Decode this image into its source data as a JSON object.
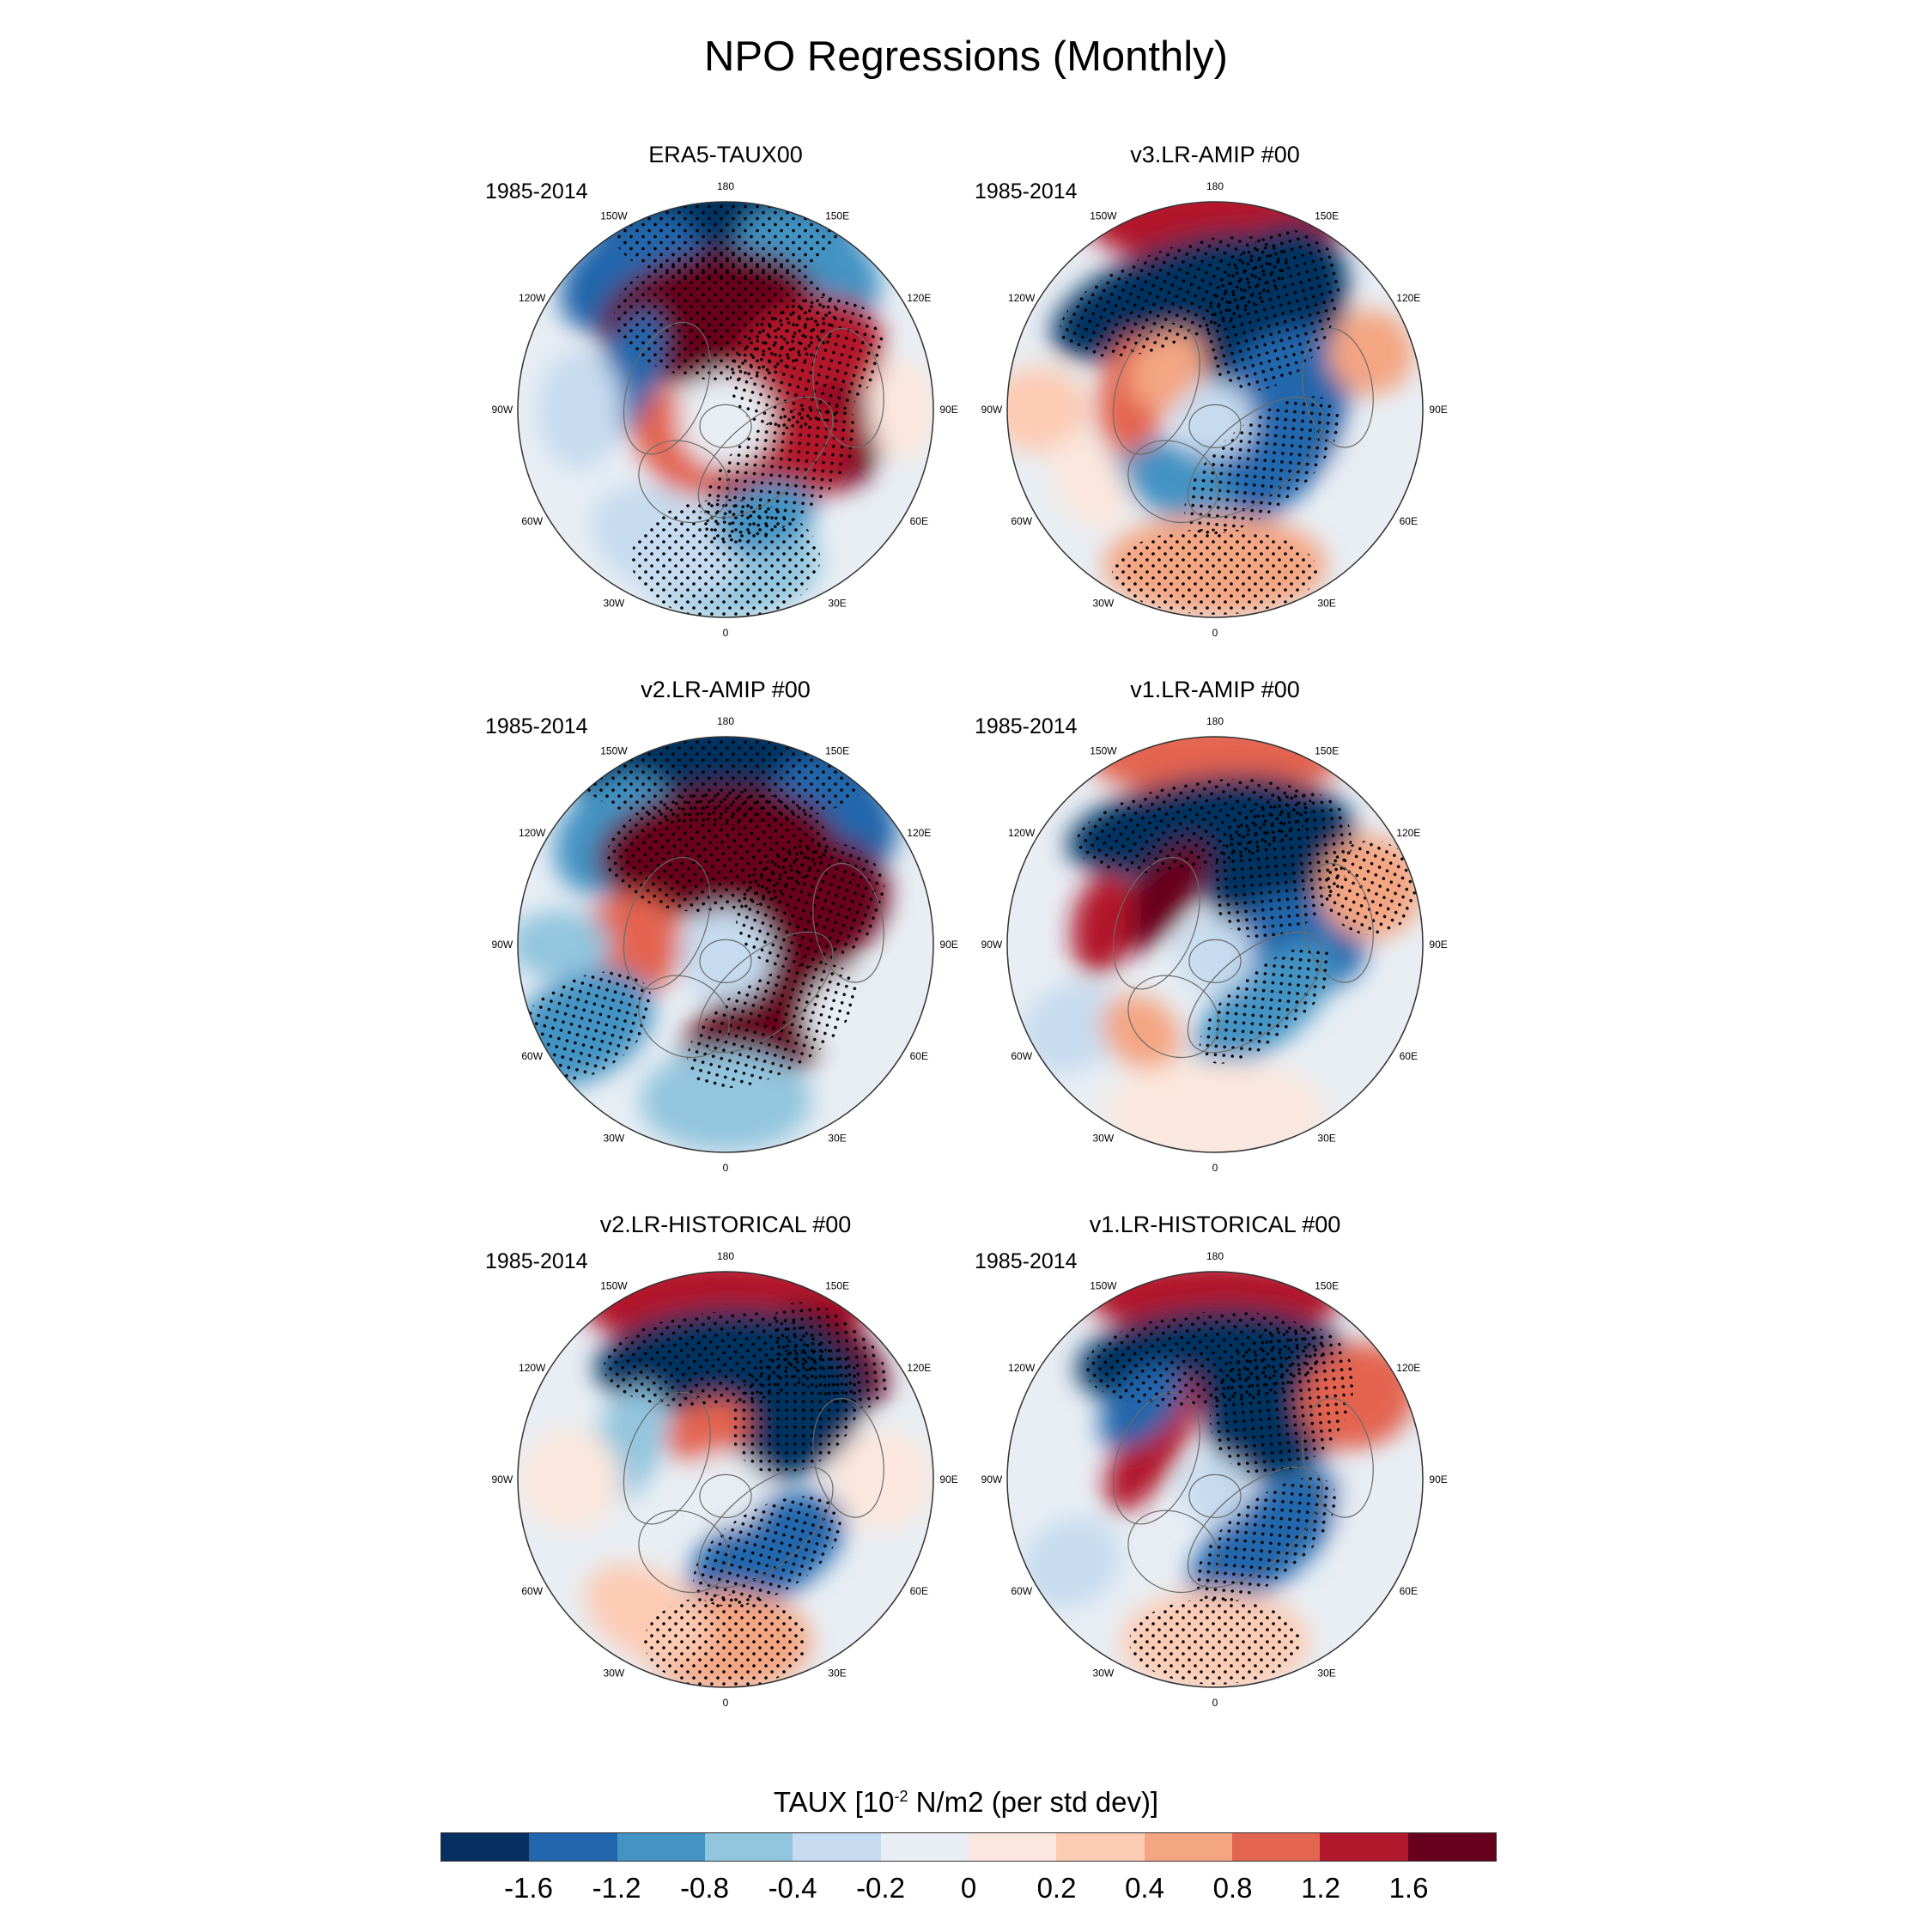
{
  "title": "NPO Regressions (Monthly)",
  "colors": {
    "map_edge": "#333333",
    "coast": "#6b6b6b",
    "stipple": "#000000"
  },
  "longitude_labels": [
    "180",
    "150E",
    "120E",
    "90E",
    "60E",
    "30E",
    "0",
    "30W",
    "60W",
    "90W",
    "120W",
    "150W"
  ],
  "panels": [
    {
      "title": "ERA5-TAUX00",
      "period": "1985-2014",
      "pattern": "era5"
    },
    {
      "title": "v3.LR-AMIP  #00",
      "period": "1985-2014",
      "pattern": "v3amip"
    },
    {
      "title": "v2.LR-AMIP  #00",
      "period": "1985-2014",
      "pattern": "v2amip"
    },
    {
      "title": "v1.LR-AMIP  #00",
      "period": "1985-2014",
      "pattern": "v1amip"
    },
    {
      "title": "v2.LR-HISTORICAL  #00",
      "period": "1985-2014",
      "pattern": "v2hist"
    },
    {
      "title": "v1.LR-HISTORICAL  #00",
      "period": "1985-2014",
      "pattern": "v1hist"
    }
  ],
  "colorbar": {
    "title_main": "TAUX [10",
    "title_exp": "-2",
    "title_rest": " N/m2 (per std dev)]",
    "colors": [
      "#053061",
      "#2166ac",
      "#4393c3",
      "#92c5de",
      "#c6dbef",
      "#e8eef4",
      "#fbe7dd",
      "#fdcbb4",
      "#f4a582",
      "#e3644f",
      "#b2182b",
      "#67001f"
    ],
    "labels": [
      "-1.6",
      "-1.2",
      "-0.8",
      "-0.4",
      "-0.2",
      "0",
      "0.2",
      "0.4",
      "0.8",
      "1.2",
      "1.6"
    ]
  }
}
